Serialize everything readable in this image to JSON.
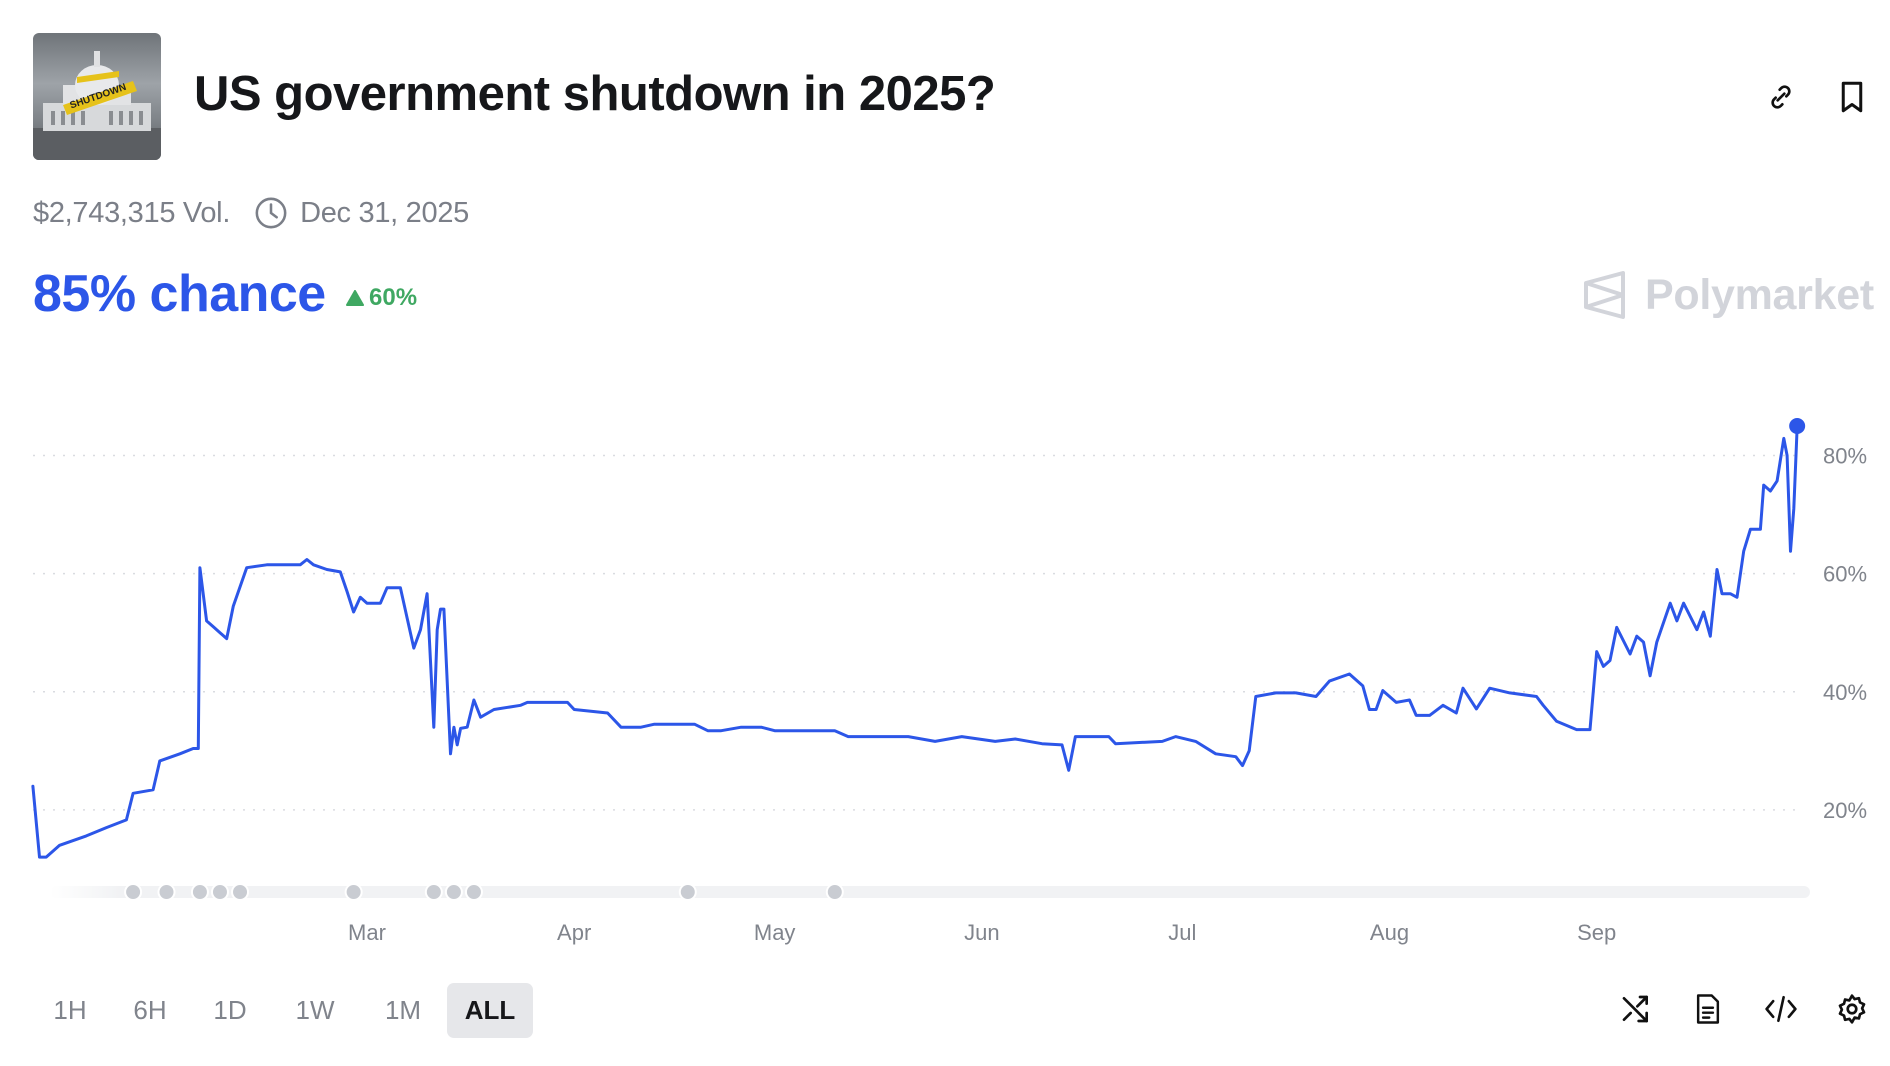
{
  "header": {
    "title": "US government shutdown in 2025?",
    "thumbnail_text": "SHUTDOWN",
    "icons": [
      "link-icon",
      "bookmark-icon"
    ]
  },
  "meta": {
    "volume": "$2,743,315 Vol.",
    "end_date": "Dec 31, 2025"
  },
  "outcome": {
    "chance": "85% chance",
    "change": "60%",
    "change_direction": "up"
  },
  "brand": {
    "name": "Polymarket"
  },
  "colors": {
    "accent": "#2c56e8",
    "positive": "#3fa862",
    "grid": "#d9dbe0",
    "muted": "#80848c"
  },
  "chart_data": {
    "type": "line",
    "title": "",
    "xlabel": "",
    "ylabel": "",
    "ylim": [
      0,
      100
    ],
    "xlim": [
      "2025-01-10",
      "2025-10-01"
    ],
    "grid": true,
    "y_ticks": [
      20,
      40,
      60,
      80
    ],
    "y_tick_labels": [
      "20%",
      "40%",
      "60%",
      "80%"
    ],
    "x_ticks": [
      "2025-03-01",
      "2025-04-01",
      "2025-05-01",
      "2025-06-01",
      "2025-07-01",
      "2025-08-01",
      "2025-09-01"
    ],
    "x_tick_labels": [
      "Mar",
      "Apr",
      "May",
      "Jun",
      "Jul",
      "Aug",
      "Sep"
    ],
    "y_axis_side": "right",
    "last_point_marker": true,
    "event_markers": [
      "2025-01-25",
      "2025-01-30",
      "2025-02-04",
      "2025-02-07",
      "2025-02-10",
      "2025-02-27",
      "2025-03-11",
      "2025-03-14",
      "2025-03-17",
      "2025-04-18",
      "2025-05-10"
    ],
    "series": [
      {
        "color": "#2c56e8",
        "points": [
          [
            "2025-01-10",
            24
          ],
          [
            "2025-01-11",
            12
          ],
          [
            "2025-01-12",
            12
          ],
          [
            "2025-01-14",
            14
          ],
          [
            "2025-01-18",
            15.6
          ],
          [
            "2025-01-21",
            17
          ],
          [
            "2025-01-24",
            18.3
          ],
          [
            "2025-01-25",
            22.8
          ],
          [
            "2025-01-28",
            23.4
          ],
          [
            "2025-01-29",
            28.3
          ],
          [
            "2025-02-01",
            29.5
          ],
          [
            "2025-02-03",
            30.4
          ],
          [
            "2025-02-03T18:00",
            30.4
          ],
          [
            "2025-02-04",
            61
          ],
          [
            "2025-02-05",
            52
          ],
          [
            "2025-02-06",
            51
          ],
          [
            "2025-02-07",
            50
          ],
          [
            "2025-02-08",
            49
          ],
          [
            "2025-02-09",
            54.5
          ],
          [
            "2025-02-11",
            61
          ],
          [
            "2025-02-14",
            61.5
          ],
          [
            "2025-02-19",
            61.5
          ],
          [
            "2025-02-20",
            62.4
          ],
          [
            "2025-02-21",
            61.5
          ],
          [
            "2025-02-23",
            60.7
          ],
          [
            "2025-02-25",
            60.3
          ],
          [
            "2025-02-26",
            57
          ],
          [
            "2025-02-27",
            53.5
          ],
          [
            "2025-02-28",
            56
          ],
          [
            "2025-03-01",
            55
          ],
          [
            "2025-03-03",
            55
          ],
          [
            "2025-03-04",
            57.6
          ],
          [
            "2025-03-06",
            57.6
          ],
          [
            "2025-03-07",
            52.5
          ],
          [
            "2025-03-08",
            47.4
          ],
          [
            "2025-03-09",
            50.5
          ],
          [
            "2025-03-10",
            56.6
          ],
          [
            "2025-03-11",
            34
          ],
          [
            "2025-03-11T12:00",
            50.5
          ],
          [
            "2025-03-12",
            54
          ],
          [
            "2025-03-12T12:00",
            54
          ],
          [
            "2025-03-13T12:00",
            29.5
          ],
          [
            "2025-03-14",
            34
          ],
          [
            "2025-03-14T12:00",
            31
          ],
          [
            "2025-03-15",
            33.8
          ],
          [
            "2025-03-16",
            34
          ],
          [
            "2025-03-17",
            38.6
          ],
          [
            "2025-03-18",
            35.7
          ],
          [
            "2025-03-20",
            37
          ],
          [
            "2025-03-24",
            37.7
          ],
          [
            "2025-03-25",
            38.2
          ],
          [
            "2025-03-31",
            38.2
          ],
          [
            "2025-04-01",
            37
          ],
          [
            "2025-04-06",
            36.4
          ],
          [
            "2025-04-08",
            34
          ],
          [
            "2025-04-11",
            34
          ],
          [
            "2025-04-13",
            34.5
          ],
          [
            "2025-04-19",
            34.5
          ],
          [
            "2025-04-21",
            33.4
          ],
          [
            "2025-04-23",
            33.4
          ],
          [
            "2025-04-26",
            34
          ],
          [
            "2025-04-29",
            34
          ],
          [
            "2025-05-01",
            33.4
          ],
          [
            "2025-05-10",
            33.4
          ],
          [
            "2025-05-12",
            32.4
          ],
          [
            "2025-05-21",
            32.4
          ],
          [
            "2025-05-25",
            31.6
          ],
          [
            "2025-05-29",
            32.4
          ],
          [
            "2025-06-03",
            31.6
          ],
          [
            "2025-06-06",
            32
          ],
          [
            "2025-06-10",
            31.2
          ],
          [
            "2025-06-13",
            31
          ],
          [
            "2025-06-14",
            26.7
          ],
          [
            "2025-06-15",
            32.4
          ],
          [
            "2025-06-20",
            32.4
          ],
          [
            "2025-06-21",
            31.2
          ],
          [
            "2025-06-28",
            31.6
          ],
          [
            "2025-06-30",
            32.4
          ],
          [
            "2025-07-03",
            31.6
          ],
          [
            "2025-07-06",
            29.5
          ],
          [
            "2025-07-09",
            29
          ],
          [
            "2025-07-10",
            27.5
          ],
          [
            "2025-07-11",
            30
          ],
          [
            "2025-07-12",
            39.2
          ],
          [
            "2025-07-15",
            39.8
          ],
          [
            "2025-07-18",
            39.8
          ],
          [
            "2025-07-21",
            39.2
          ],
          [
            "2025-07-23",
            41.8
          ],
          [
            "2025-07-26",
            43
          ],
          [
            "2025-07-28",
            41
          ],
          [
            "2025-07-29",
            37
          ],
          [
            "2025-07-30",
            37
          ],
          [
            "2025-07-31",
            40.2
          ],
          [
            "2025-08-02",
            38.2
          ],
          [
            "2025-08-04",
            38.6
          ],
          [
            "2025-08-05",
            36
          ],
          [
            "2025-08-07",
            36
          ],
          [
            "2025-08-09",
            37.7
          ],
          [
            "2025-08-11",
            36.4
          ],
          [
            "2025-08-12",
            40.6
          ],
          [
            "2025-08-14",
            37.1
          ],
          [
            "2025-08-16",
            40.6
          ],
          [
            "2025-08-19",
            39.8
          ],
          [
            "2025-08-23",
            39.2
          ],
          [
            "2025-08-24",
            37.7
          ],
          [
            "2025-08-26",
            35
          ],
          [
            "2025-08-29",
            33.6
          ],
          [
            "2025-08-31",
            33.6
          ],
          [
            "2025-09-01",
            46.8
          ],
          [
            "2025-09-02",
            44.3
          ],
          [
            "2025-09-03",
            45.3
          ],
          [
            "2025-09-04",
            50.9
          ],
          [
            "2025-09-06",
            46.4
          ],
          [
            "2025-09-07",
            49.4
          ],
          [
            "2025-09-08",
            48.4
          ],
          [
            "2025-09-09",
            42.7
          ],
          [
            "2025-09-10",
            48.4
          ],
          [
            "2025-09-12",
            55
          ],
          [
            "2025-09-13",
            52
          ],
          [
            "2025-09-14",
            55
          ],
          [
            "2025-09-16",
            50.5
          ],
          [
            "2025-09-17",
            53.5
          ],
          [
            "2025-09-18",
            49.4
          ],
          [
            "2025-09-19",
            60.7
          ],
          [
            "2025-09-19T18:00",
            56.6
          ],
          [
            "2025-09-21",
            56.6
          ],
          [
            "2025-09-22",
            56
          ],
          [
            "2025-09-23",
            63.8
          ],
          [
            "2025-09-24",
            67.5
          ],
          [
            "2025-09-25T12:00",
            67.5
          ],
          [
            "2025-09-26",
            75
          ],
          [
            "2025-09-27",
            74
          ],
          [
            "2025-09-28",
            75.7
          ],
          [
            "2025-09-29",
            82.9
          ],
          [
            "2025-09-29T12:00",
            80
          ],
          [
            "2025-09-30",
            63.8
          ],
          [
            "2025-09-30T12:00",
            71
          ],
          [
            "2025-10-01",
            85
          ]
        ]
      }
    ]
  },
  "controls": {
    "ranges": [
      "1H",
      "6H",
      "1D",
      "1W",
      "1M",
      "ALL"
    ],
    "active_range": "ALL",
    "tools": [
      "shuffle-icon",
      "document-icon",
      "code-embed-icon",
      "settings-gear-icon"
    ]
  }
}
